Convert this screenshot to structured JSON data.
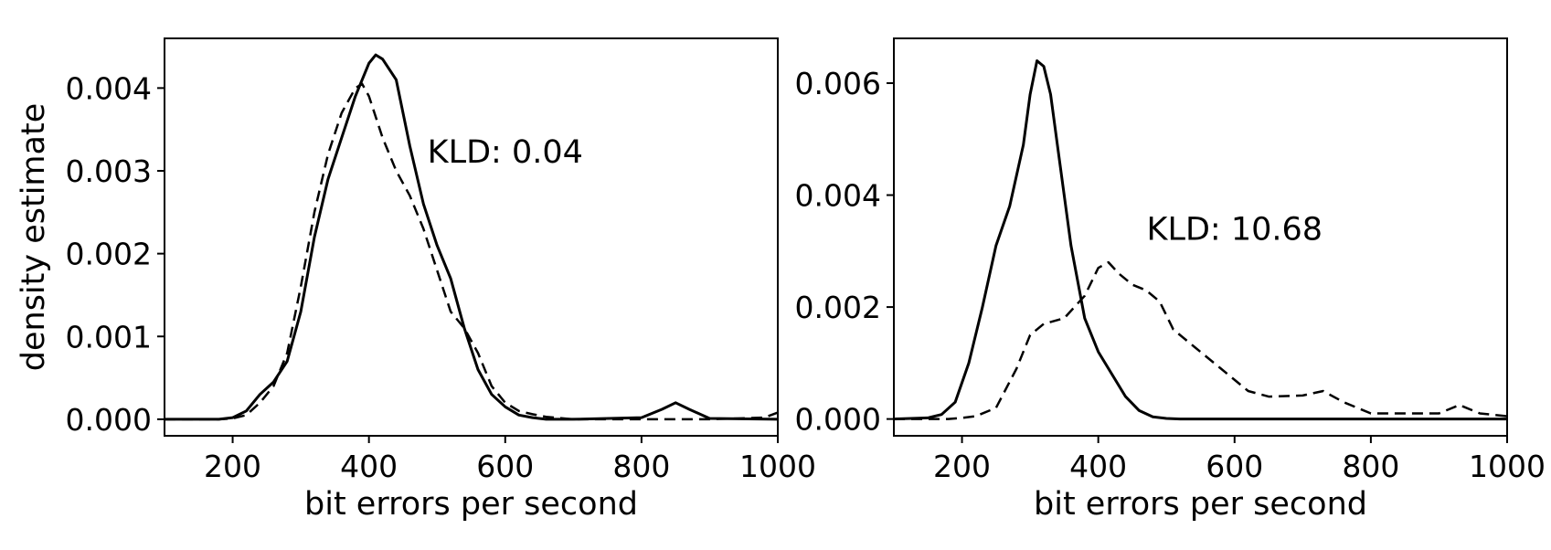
{
  "chart_data": [
    {
      "type": "line",
      "xlabel": "bit errors per second",
      "ylabel": "density estimate",
      "xlim": [
        100,
        1000
      ],
      "ylim": [
        -0.0002,
        0.0046
      ],
      "xticks": [
        200,
        400,
        600,
        800,
        1000
      ],
      "xtick_labels": [
        "200",
        "400",
        "600",
        "800",
        "1000"
      ],
      "yticks": [
        0.0,
        0.001,
        0.002,
        0.003,
        0.004
      ],
      "ytick_labels": [
        "0.000",
        "0.001",
        "0.002",
        "0.003",
        "0.004"
      ],
      "annotation": {
        "text": "KLD: 0.04",
        "x": 600,
        "y": 0.0031
      },
      "grid": false,
      "series": [
        {
          "style": "solid",
          "x": [
            100,
            180,
            200,
            220,
            240,
            260,
            280,
            300,
            320,
            340,
            360,
            380,
            400,
            410,
            420,
            440,
            460,
            480,
            500,
            520,
            540,
            560,
            580,
            600,
            620,
            640,
            660,
            700,
            800,
            830,
            850,
            870,
            900,
            1000
          ],
          "y": [
            0,
            0,
            2e-05,
            0.0001,
            0.0003,
            0.00045,
            0.0007,
            0.0013,
            0.0022,
            0.0029,
            0.0034,
            0.0039,
            0.0043,
            0.0044,
            0.00435,
            0.0041,
            0.0033,
            0.0026,
            0.0021,
            0.0017,
            0.0011,
            0.0006,
            0.0003,
            0.00015,
            5e-05,
            2e-05,
            0,
            0,
            2e-05,
            0.00012,
            0.0002,
            0.00012,
            1e-05,
            0
          ]
        },
        {
          "style": "dashed",
          "x": [
            100,
            180,
            200,
            220,
            240,
            260,
            280,
            300,
            320,
            340,
            360,
            380,
            390,
            400,
            420,
            440,
            460,
            480,
            500,
            520,
            540,
            560,
            580,
            600,
            620,
            640,
            660,
            700,
            800,
            900,
            980,
            1000
          ],
          "y": [
            0,
            0,
            1e-05,
            5e-05,
            0.0002,
            0.0004,
            0.0008,
            0.0016,
            0.0025,
            0.0032,
            0.0037,
            0.004,
            0.00405,
            0.0039,
            0.0034,
            0.003,
            0.0027,
            0.0023,
            0.0018,
            0.0013,
            0.0011,
            0.0008,
            0.0004,
            0.0002,
            0.0001,
            6e-05,
            3e-05,
            0,
            0,
            0,
            2e-05,
            8e-05
          ]
        }
      ]
    },
    {
      "type": "line",
      "xlabel": "bit errors per second",
      "ylabel": "",
      "xlim": [
        100,
        1000
      ],
      "ylim": [
        -0.0003,
        0.0068
      ],
      "xticks": [
        200,
        400,
        600,
        800,
        1000
      ],
      "xtick_labels": [
        "200",
        "400",
        "600",
        "800",
        "1000"
      ],
      "yticks": [
        0.0,
        0.002,
        0.004,
        0.006
      ],
      "ytick_labels": [
        "0.000",
        "0.002",
        "0.004",
        "0.006"
      ],
      "annotation": {
        "text": "KLD: 10.68",
        "x": 600,
        "y": 0.0032
      },
      "grid": false,
      "series": [
        {
          "style": "solid",
          "x": [
            100,
            150,
            170,
            190,
            210,
            230,
            250,
            270,
            290,
            300,
            310,
            320,
            330,
            340,
            360,
            380,
            400,
            420,
            440,
            460,
            480,
            500,
            520,
            600,
            1000
          ],
          "y": [
            0,
            2e-05,
            8e-05,
            0.0003,
            0.001,
            0.002,
            0.0031,
            0.0038,
            0.0049,
            0.0058,
            0.0064,
            0.0063,
            0.0058,
            0.0049,
            0.0031,
            0.0018,
            0.0012,
            0.0008,
            0.0004,
            0.00015,
            4e-05,
            1e-05,
            0,
            0,
            0
          ]
        },
        {
          "style": "dashed",
          "x": [
            100,
            180,
            200,
            220,
            250,
            280,
            300,
            320,
            350,
            380,
            400,
            415,
            430,
            450,
            470,
            490,
            510,
            540,
            580,
            620,
            650,
            700,
            730,
            760,
            800,
            850,
            900,
            930,
            960,
            1000
          ],
          "y": [
            0,
            0,
            2e-05,
            5e-05,
            0.0002,
            0.0009,
            0.0015,
            0.0017,
            0.0018,
            0.0022,
            0.0027,
            0.0028,
            0.0026,
            0.0024,
            0.0023,
            0.0021,
            0.0016,
            0.0013,
            0.0009,
            0.0005,
            0.0004,
            0.00042,
            0.0005,
            0.0003,
            0.0001,
            0.0001,
            0.0001,
            0.00025,
            0.0001,
            5e-05
          ]
        }
      ]
    }
  ]
}
